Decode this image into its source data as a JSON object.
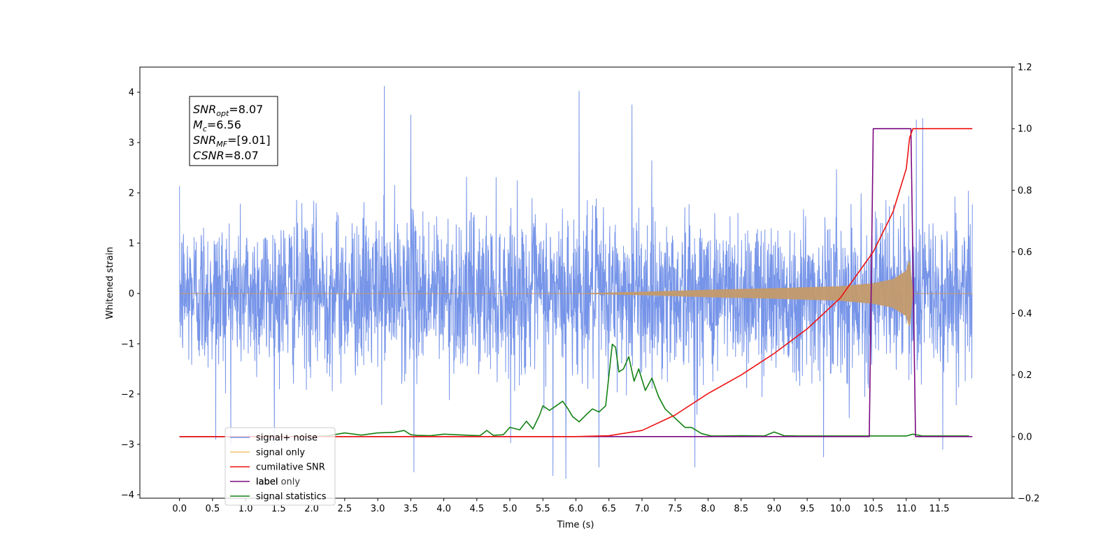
{
  "chart_data": {
    "type": "line",
    "title": "",
    "xlabel": "Time (s)",
    "ylabel": "Whitened strain",
    "xlim": [
      -0.6,
      12.6
    ],
    "ylim": [
      -4.07,
      4.5
    ],
    "y2lim": [
      -0.2,
      1.2
    ],
    "xticks": [
      "0.0",
      "0.5",
      "1.0",
      "1.5",
      "2.0",
      "2.5",
      "3.0",
      "3.5",
      "4.0",
      "4.5",
      "5.0",
      "5.5",
      "6.0",
      "6.5",
      "7.0",
      "7.5",
      "8.0",
      "8.5",
      "9.0",
      "9.5",
      "10.0",
      "10.5",
      "11.0",
      "11.5"
    ],
    "yticks": [
      "4",
      "3",
      "2",
      "1",
      "0",
      "−1",
      "−2",
      "−3",
      "−4"
    ],
    "y2ticks": [
      "1.2",
      "1.0",
      "0.8",
      "0.6",
      "0.4",
      "0.2",
      "0.0",
      "−0.2"
    ],
    "grid": false,
    "legend_position": "lower-left",
    "annotation": {
      "lines": [
        {
          "label": "SNR",
          "sub": "opt",
          "value": "=8.07"
        },
        {
          "label": "M",
          "sub": "c",
          "value": "=6.56"
        },
        {
          "label": "SNR",
          "sub": "MF",
          "value": "=[9.01]"
        },
        {
          "label": "CSNR",
          "sub": "",
          "value": "=8.07"
        }
      ]
    },
    "series": [
      {
        "name": "signal+ noise",
        "color": "#7694e8",
        "axis": "left",
        "kind": "noise",
        "x_range": [
          0.0,
          12.0
        ],
        "typical_amplitude": [
          -2.0,
          2.0
        ],
        "peaks": [
          {
            "x": 3.1,
            "y": 4.12
          },
          {
            "x": 3.5,
            "y": 3.55
          },
          {
            "x": 6.05,
            "y": 4.02
          },
          {
            "x": 6.85,
            "y": 3.75
          },
          {
            "x": 11.15,
            "y": 3.45
          },
          {
            "x": 11.25,
            "y": 3.48
          },
          {
            "x": 0.55,
            "y": -2.9
          },
          {
            "x": 3.55,
            "y": -3.55
          },
          {
            "x": 5.65,
            "y": -3.62
          },
          {
            "x": 5.85,
            "y": -3.68
          },
          {
            "x": 6.35,
            "y": -3.45
          },
          {
            "x": 7.8,
            "y": -3.45
          },
          {
            "x": 9.75,
            "y": -3.25
          },
          {
            "x": 11.55,
            "y": -3.1
          }
        ]
      },
      {
        "name": "signal only",
        "color": "#c49a6c",
        "axis": "left",
        "kind": "chirp",
        "x": [
          0,
          6.0,
          7.0,
          8.0,
          9.0,
          10.0,
          10.5,
          10.8,
          11.0,
          11.05,
          11.1,
          12.0
        ],
        "envelope": [
          0,
          0.0,
          0.03,
          0.07,
          0.1,
          0.14,
          0.2,
          0.28,
          0.45,
          0.68,
          0.0,
          0
        ]
      },
      {
        "name": "cumilative SNR",
        "color": "#ee1111",
        "axis": "right",
        "x": [
          0,
          6.0,
          6.5,
          7.0,
          7.5,
          8.0,
          8.5,
          9.0,
          9.5,
          10.0,
          10.5,
          10.8,
          11.0,
          11.05,
          11.1,
          11.15,
          12.0
        ],
        "values": [
          0,
          0,
          0.003,
          0.02,
          0.07,
          0.14,
          0.2,
          0.27,
          0.35,
          0.45,
          0.6,
          0.73,
          0.87,
          0.97,
          1.0,
          1.0,
          1.0
        ]
      },
      {
        "name": "label",
        "color": "#7b0a80",
        "axis": "right",
        "x": [
          0,
          10.44,
          10.5,
          11.07,
          11.14,
          12.0
        ],
        "values": [
          0,
          0,
          1.0,
          1.0,
          0,
          0
        ]
      },
      {
        "name": "signal statistics",
        "color": "#138113",
        "axis": "right",
        "x": [
          0,
          2.0,
          2.25,
          2.5,
          2.75,
          3.0,
          3.25,
          3.4,
          3.5,
          3.6,
          3.8,
          4.0,
          4.2,
          4.4,
          4.55,
          4.65,
          4.75,
          4.9,
          5.0,
          5.15,
          5.25,
          5.35,
          5.45,
          5.5,
          5.6,
          5.7,
          5.8,
          5.88,
          5.95,
          6.05,
          6.15,
          6.25,
          6.35,
          6.45,
          6.55,
          6.6,
          6.65,
          6.72,
          6.8,
          6.88,
          6.95,
          7.05,
          7.15,
          7.25,
          7.35,
          7.5,
          7.65,
          7.75,
          7.9,
          8.05,
          8.2,
          8.5,
          8.85,
          9.0,
          9.15,
          9.35,
          9.6,
          9.8,
          10.1,
          10.5,
          10.8,
          11.0,
          11.1,
          11.25,
          11.5,
          11.95
        ],
        "values": [
          0,
          0,
          0.003,
          0.012,
          0.005,
          0.012,
          0.014,
          0.02,
          0.006,
          0.004,
          0.003,
          0.008,
          0.006,
          0.004,
          0.003,
          0.02,
          0.004,
          0.006,
          0.03,
          0.022,
          0.05,
          0.025,
          0.07,
          0.1,
          0.085,
          0.1,
          0.115,
          0.09,
          0.065,
          0.048,
          0.07,
          0.09,
          0.08,
          0.1,
          0.3,
          0.29,
          0.21,
          0.22,
          0.26,
          0.18,
          0.22,
          0.15,
          0.19,
          0.13,
          0.09,
          0.06,
          0.03,
          0.03,
          0.01,
          0.002,
          0.002,
          0.003,
          0.002,
          0.015,
          0.003,
          0.002,
          0.002,
          0.002,
          0.002,
          0.002,
          0.002,
          0.002,
          0.008,
          0.002,
          0.002,
          0.002
        ]
      }
    ],
    "legend_extra": "label only"
  }
}
